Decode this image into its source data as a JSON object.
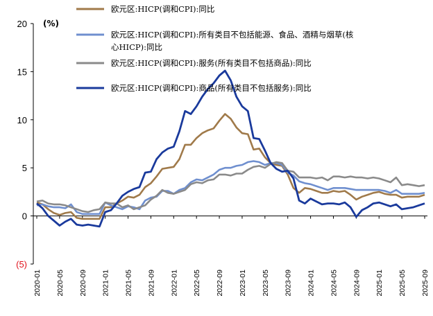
{
  "chart_data": {
    "type": "line",
    "title": "",
    "unit_label": "(%)",
    "xlabel": "",
    "ylabel": "",
    "ylim": [
      -5,
      20
    ],
    "yticks": [
      {
        "value": 20,
        "label": "20"
      },
      {
        "value": 15,
        "label": "15"
      },
      {
        "value": 10,
        "label": "10"
      },
      {
        "value": 5,
        "label": "5"
      },
      {
        "value": 0,
        "label": "0"
      },
      {
        "value": -5,
        "label": "(5)"
      }
    ],
    "xtick_labels": [
      "2020-01",
      "2020-05",
      "2020-09",
      "2021-01",
      "2021-05",
      "2021-09",
      "2022-01",
      "2022-05",
      "2022-09",
      "2023-01",
      "2023-05",
      "2023-09",
      "2024-01",
      "2024-05",
      "2024-09",
      "2025-01",
      "2025-05",
      "2025-09"
    ],
    "grid": false,
    "legend_position": "top",
    "x": [
      "2020-01",
      "2020-02",
      "2020-03",
      "2020-04",
      "2020-05",
      "2020-06",
      "2020-07",
      "2020-08",
      "2020-09",
      "2020-10",
      "2020-11",
      "2020-12",
      "2021-01",
      "2021-02",
      "2021-03",
      "2021-04",
      "2021-05",
      "2021-06",
      "2021-07",
      "2021-08",
      "2021-09",
      "2021-10",
      "2021-11",
      "2021-12",
      "2022-01",
      "2022-02",
      "2022-03",
      "2022-04",
      "2022-05",
      "2022-06",
      "2022-07",
      "2022-08",
      "2022-09",
      "2022-10",
      "2022-11",
      "2022-12",
      "2023-01",
      "2023-02",
      "2023-03",
      "2023-04",
      "2023-05",
      "2023-06",
      "2023-07",
      "2023-08",
      "2023-09",
      "2023-10",
      "2023-11",
      "2023-12",
      "2024-01",
      "2024-02",
      "2024-03",
      "2024-04",
      "2024-05",
      "2024-06",
      "2024-07",
      "2024-08",
      "2024-09",
      "2024-10",
      "2024-11",
      "2024-12",
      "2025-01",
      "2025-02",
      "2025-03",
      "2025-04",
      "2025-05",
      "2025-06",
      "2025-07",
      "2025-08",
      "2025-09"
    ],
    "series": [
      {
        "name": "欧元区:HICP(调和CPI):同比",
        "color": "#a07a4a",
        "values": [
          1.4,
          1.2,
          0.7,
          0.3,
          0.1,
          0.3,
          0.4,
          -0.2,
          -0.3,
          -0.3,
          -0.3,
          -0.3,
          0.9,
          0.9,
          1.3,
          1.6,
          2.0,
          1.9,
          2.2,
          3.0,
          3.4,
          4.1,
          4.9,
          5.0,
          5.1,
          5.9,
          7.4,
          7.4,
          8.1,
          8.6,
          8.9,
          9.1,
          9.9,
          10.6,
          10.1,
          9.2,
          8.6,
          8.5,
          6.9,
          7.0,
          6.1,
          5.5,
          5.3,
          5.2,
          4.3,
          2.9,
          2.4,
          2.9,
          2.8,
          2.6,
          2.4,
          2.4,
          2.6,
          2.5,
          2.6,
          2.2,
          1.7,
          2.0,
          2.2,
          2.4,
          2.5,
          2.3,
          2.2,
          2.2,
          1.9,
          2.0,
          2.0,
          2.0,
          2.2
        ]
      },
      {
        "name": "欧元区:HICP(调和CPI):所有类目不包括能源、食品、酒精与烟草(核心HICP):同比",
        "color": "#6f8fcf",
        "values": [
          1.1,
          1.2,
          1.0,
          0.9,
          0.9,
          0.8,
          1.2,
          0.4,
          0.2,
          0.2,
          0.2,
          0.2,
          1.4,
          1.1,
          0.9,
          0.7,
          1.0,
          0.9,
          0.7,
          1.6,
          1.9,
          2.0,
          2.6,
          2.6,
          2.3,
          2.7,
          2.9,
          3.5,
          3.8,
          3.7,
          4.0,
          4.3,
          4.8,
          5.0,
          5.0,
          5.2,
          5.3,
          5.6,
          5.7,
          5.6,
          5.3,
          5.5,
          5.5,
          5.3,
          4.5,
          4.2,
          3.6,
          3.4,
          3.3,
          3.1,
          2.9,
          2.7,
          2.9,
          2.9,
          2.9,
          2.8,
          2.7,
          2.7,
          2.7,
          2.7,
          2.7,
          2.6,
          2.4,
          2.7,
          2.3,
          2.3,
          2.3,
          2.3,
          2.4
        ]
      },
      {
        "name": "欧元区:HICP(调和CPI):服务(所有类目不包括商品):同比",
        "color": "#8a8a8a",
        "values": [
          1.5,
          1.6,
          1.3,
          1.2,
          1.2,
          1.1,
          0.9,
          0.7,
          0.5,
          0.4,
          0.6,
          0.7,
          1.4,
          1.3,
          1.3,
          0.9,
          1.1,
          0.7,
          0.9,
          1.1,
          1.7,
          2.1,
          2.7,
          2.4,
          2.3,
          2.5,
          2.7,
          3.3,
          3.5,
          3.4,
          3.7,
          3.8,
          4.3,
          4.3,
          4.2,
          4.4,
          4.4,
          4.8,
          5.1,
          5.2,
          5.0,
          5.4,
          5.6,
          5.5,
          4.7,
          4.6,
          4.0,
          4.0,
          4.0,
          3.9,
          4.0,
          3.7,
          4.1,
          4.1,
          4.0,
          4.1,
          4.0,
          4.0,
          3.9,
          4.0,
          3.9,
          3.7,
          3.5,
          4.0,
          3.2,
          3.3,
          3.2,
          3.1,
          3.2
        ]
      },
      {
        "name": "欧元区:HICP(调和CPI):商品(所有类目不包括服务):同比",
        "color": "#1a3a9c",
        "values": [
          1.3,
          0.8,
          0.0,
          -0.5,
          -1.0,
          -0.6,
          -0.3,
          -0.9,
          -1.0,
          -0.9,
          -1.0,
          -1.1,
          0.4,
          0.6,
          1.3,
          2.1,
          2.5,
          2.8,
          3.0,
          4.5,
          4.6,
          5.9,
          6.6,
          7.0,
          7.2,
          8.8,
          10.9,
          10.6,
          11.4,
          12.4,
          13.2,
          13.8,
          14.6,
          15.1,
          14.1,
          12.4,
          11.4,
          10.9,
          8.1,
          8.0,
          6.8,
          5.5,
          4.9,
          4.6,
          4.7,
          3.9,
          1.6,
          1.3,
          1.8,
          1.5,
          1.2,
          1.3,
          1.3,
          1.2,
          1.4,
          0.9,
          -0.1,
          0.6,
          0.9,
          1.3,
          1.4,
          1.2,
          1.0,
          1.2,
          0.7,
          0.8,
          0.9,
          1.1,
          1.3
        ]
      }
    ]
  }
}
